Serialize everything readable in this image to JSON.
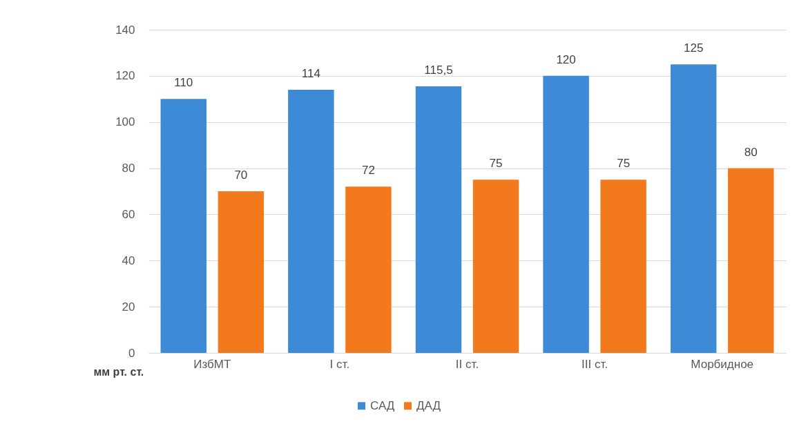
{
  "chart_data": {
    "type": "bar",
    "ylabel": "мм рт. ст.",
    "categories": [
      "ИзбМТ",
      "I ст.",
      "II ст.",
      "III ст.",
      "Морбидное"
    ],
    "series": [
      {
        "name": "САД",
        "color": "#3d8bd6",
        "values": [
          110,
          114,
          115.5,
          120,
          125
        ],
        "value_labels": [
          "110",
          "114",
          "115,5",
          "120",
          "125"
        ]
      },
      {
        "name": "ДАД",
        "color": "#f27a1c",
        "values": [
          70,
          72,
          75,
          75,
          80
        ],
        "value_labels": [
          "70",
          "72",
          "75",
          "75",
          "80"
        ]
      }
    ],
    "ylim": [
      0,
      140
    ],
    "yticks": [
      0,
      20,
      40,
      60,
      80,
      100,
      120,
      140
    ],
    "grid": "y",
    "legend": "bottom"
  }
}
